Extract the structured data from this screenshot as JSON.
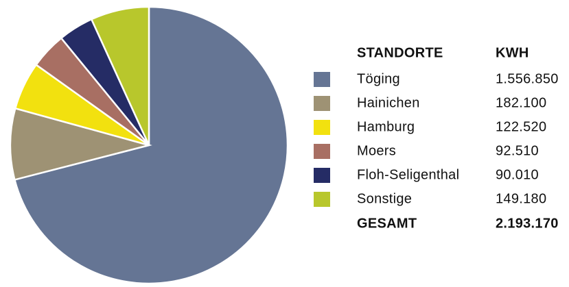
{
  "chart_data": {
    "type": "pie",
    "header": {
      "name": "STANDORTE",
      "value": "KWH"
    },
    "categories": [
      "Töging",
      "Hainichen",
      "Hamburg",
      "Moers",
      "Floh-Seligenthal",
      "Sonstige"
    ],
    "values": [
      1556850,
      182100,
      122520,
      92510,
      90010,
      149180
    ],
    "value_labels": [
      "1.556.850",
      "182.100",
      "122.520",
      "92.510",
      "90.010",
      "149.180"
    ],
    "colors": [
      "#657594",
      "#9e9274",
      "#f2e10f",
      "#a86f63",
      "#252c65",
      "#b8c72c"
    ],
    "total": {
      "label": "GESAMT",
      "value": 2193170,
      "value_label": "2.193.170"
    }
  }
}
